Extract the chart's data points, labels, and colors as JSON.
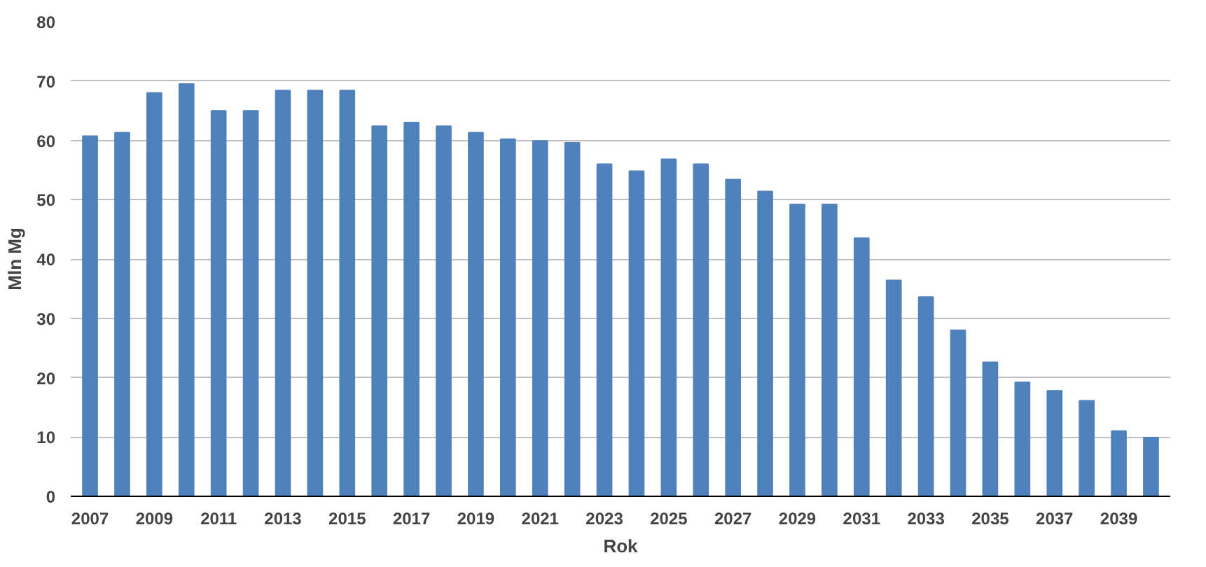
{
  "chart_data": {
    "type": "bar",
    "xlabel": "Rok",
    "ylabel": "Mln Mg",
    "categories": [
      "2007",
      null,
      "2009",
      null,
      "2011",
      null,
      "2013",
      null,
      "2015",
      null,
      "2017",
      null,
      "2019",
      null,
      "2021",
      null,
      "2023",
      null,
      "2025",
      null,
      "2027",
      null,
      "2029",
      null,
      "2031",
      null,
      "2033",
      null,
      "2035",
      null,
      "2037",
      null,
      "2039",
      null
    ],
    "values": [
      60.7,
      61.3,
      68,
      69.5,
      65,
      65,
      68.4,
      68.4,
      68.4,
      62.4,
      63,
      62.4,
      61.3,
      60.2,
      59.9,
      59.6,
      56,
      54.8,
      56.8,
      56,
      53.4,
      51.4,
      49.2,
      49.2,
      43.5,
      36.4,
      33.6,
      28,
      22.6,
      19.2,
      17.8,
      16.1,
      11,
      9.9
    ],
    "color": "#4f81bd",
    "ylim": [
      0,
      80
    ],
    "yticks": [
      0,
      10,
      20,
      30,
      40,
      50,
      60,
      70,
      80
    ],
    "grid": "y"
  }
}
